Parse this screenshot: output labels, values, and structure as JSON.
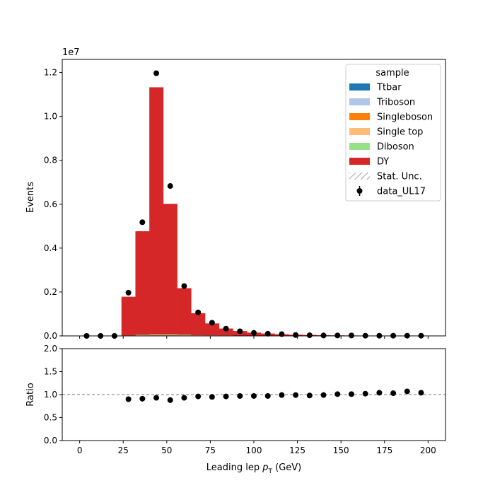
{
  "chart_data": [
    {
      "type": "bar",
      "stacked": true,
      "xlabel_main": "Leading lep ",
      "xlabel_sym": "p",
      "xlabel_sub": "T",
      "xlabel_unit": " (GeV)",
      "ylabel": "Events",
      "y_scale_label": "1e7",
      "xlim": [
        -10,
        210
      ],
      "ylim": [
        0,
        1.26
      ],
      "xticks": [
        0,
        25,
        50,
        75,
        100,
        125,
        150,
        175,
        200
      ],
      "yticks": [
        0.0,
        0.2,
        0.4,
        0.6,
        0.8,
        1.0,
        1.2
      ],
      "ytick_labels": [
        "0.0",
        "0.2",
        "0.4",
        "0.6",
        "0.8",
        "1.0",
        "1.2"
      ],
      "bin_edges": [
        0,
        8,
        16,
        24,
        32,
        40,
        48,
        56,
        64,
        72,
        80,
        88,
        96,
        104,
        112,
        120,
        128,
        136,
        144,
        152,
        160,
        168,
        176,
        184,
        192,
        200
      ],
      "series": [
        {
          "name": "Ttbar",
          "color": "#1f77b4",
          "values": [
            0,
            0,
            0,
            0.0005,
            0.001,
            0.002,
            0.002,
            0.002,
            0.001,
            0.001,
            0.001,
            0.001,
            0.001,
            0.001,
            0.0005,
            0.0005,
            0.0005,
            0.0003,
            0.0003,
            0.0003,
            0.0002,
            0.0002,
            0.0002,
            0.0002,
            0.0002
          ]
        },
        {
          "name": "Triboson",
          "color": "#aec7e8",
          "values": [
            0,
            0,
            0,
            0,
            0,
            0,
            0,
            0,
            0,
            0,
            0,
            0,
            0,
            0,
            0,
            0,
            0,
            0,
            0,
            0,
            0,
            0,
            0,
            0,
            0
          ]
        },
        {
          "name": "Singleboson",
          "color": "#ff7f0e",
          "values": [
            0,
            0,
            0,
            0.0005,
            0.001,
            0.001,
            0.001,
            0.0005,
            0.0003,
            0.0002,
            0.0001,
            0.0001,
            0,
            0,
            0,
            0,
            0,
            0,
            0,
            0,
            0,
            0,
            0,
            0,
            0
          ]
        },
        {
          "name": "Single top",
          "color": "#ffbb78",
          "values": [
            0,
            0,
            0,
            0,
            0.0005,
            0.0005,
            0.0005,
            0.0005,
            0.0003,
            0.0002,
            0.0001,
            0.0001,
            0,
            0,
            0,
            0,
            0,
            0,
            0,
            0,
            0,
            0,
            0,
            0,
            0
          ]
        },
        {
          "name": "Diboson",
          "color": "#98df8a",
          "values": [
            0,
            0,
            0,
            0.001,
            0.002,
            0.003,
            0.003,
            0.002,
            0.001,
            0.001,
            0.001,
            0.0005,
            0.0005,
            0.0003,
            0.0003,
            0.0002,
            0.0002,
            0.0001,
            0.0001,
            0.0001,
            0.0001,
            0.0001,
            0.0001,
            0.0001,
            0.0001
          ]
        },
        {
          "name": "DY",
          "color": "#d62728",
          "values": [
            0,
            0,
            0,
            0.1765,
            0.4725,
            1.1265,
            0.5955,
            0.2125,
            0.1005,
            0.0545,
            0.0315,
            0.0205,
            0.0135,
            0.0095,
            0.0065,
            0.0045,
            0.0035,
            0.0025,
            0.002,
            0.0015,
            0.0012,
            0.001,
            0.0008,
            0.0007,
            0.0006
          ]
        }
      ],
      "data": {
        "name": "data_UL17",
        "x": [
          4,
          12,
          20,
          28,
          36,
          44,
          52,
          60,
          68,
          76,
          84,
          92,
          100,
          108,
          116,
          124,
          132,
          140,
          148,
          156,
          164,
          172,
          180,
          188,
          196
        ],
        "y": [
          0.0,
          0.0,
          0.0,
          0.197,
          0.518,
          1.197,
          0.683,
          0.227,
          0.107,
          0.06,
          0.033,
          0.021,
          0.014,
          0.01,
          0.008,
          0.004,
          0.003,
          0.002,
          0.002,
          0.002,
          0.001,
          0.001,
          0.001,
          0.001,
          0.001
        ]
      },
      "legend": {
        "title": "sample",
        "placement": "top-right",
        "entries": [
          "Ttbar",
          "Triboson",
          "Singleboson",
          "Single top",
          "Diboson",
          "DY",
          "Stat. Unc.",
          "data_UL17"
        ],
        "unc_label": "Stat. Unc."
      }
    },
    {
      "type": "scatter",
      "ylabel": "Ratio",
      "xlim": [
        -10,
        210
      ],
      "ylim": [
        0.0,
        2.0
      ],
      "yticks": [
        0.0,
        0.5,
        1.0,
        1.5,
        2.0
      ],
      "ytick_labels": [
        "0.0",
        "0.5",
        "1.0",
        "1.5",
        "2.0"
      ],
      "xticks": [
        0,
        25,
        50,
        75,
        100,
        125,
        150,
        175,
        200
      ],
      "xtick_labels": [
        "0",
        "25",
        "50",
        "75",
        "100",
        "125",
        "150",
        "175",
        "200"
      ],
      "reference_line": 1.0,
      "x": [
        28,
        36,
        44,
        52,
        60,
        68,
        76,
        84,
        92,
        100,
        108,
        116,
        124,
        132,
        140,
        148,
        156,
        164,
        172,
        180,
        188,
        196
      ],
      "y": [
        0.9,
        0.91,
        0.93,
        0.88,
        0.93,
        0.96,
        0.95,
        0.96,
        0.97,
        0.97,
        0.97,
        0.99,
        0.99,
        0.98,
        0.99,
        1.01,
        1.01,
        1.02,
        1.04,
        1.03,
        1.07,
        1.04
      ]
    }
  ]
}
